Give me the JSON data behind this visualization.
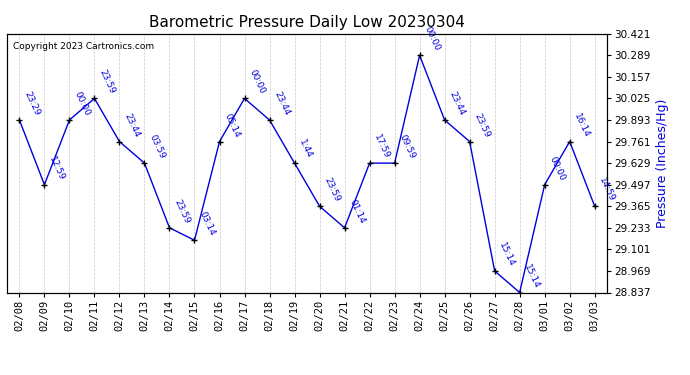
{
  "title": "Barometric Pressure Daily Low 20230304",
  "ylabel": "Pressure (Inches/Hg)",
  "copyright": "Copyright 2023 Cartronics.com",
  "line_color": "#0000dd",
  "background_color": "#ffffff",
  "grid_color": "#c8c8c8",
  "ylim_min": 28.837,
  "ylim_max": 30.421,
  "yticks": [
    28.837,
    28.969,
    29.101,
    29.233,
    29.365,
    29.497,
    29.629,
    29.761,
    29.893,
    30.025,
    30.157,
    30.289,
    30.421
  ],
  "dates": [
    "02/08",
    "02/09",
    "02/10",
    "02/11",
    "02/12",
    "02/13",
    "02/14",
    "02/15",
    "02/16",
    "02/17",
    "02/18",
    "02/19",
    "02/20",
    "02/21",
    "02/22",
    "02/23",
    "02/24",
    "02/25",
    "02/26",
    "02/27",
    "02/28",
    "03/01",
    "03/02",
    "03/03"
  ],
  "values": [
    29.893,
    29.497,
    29.893,
    30.025,
    29.761,
    29.629,
    29.233,
    29.157,
    29.761,
    30.025,
    29.893,
    29.629,
    29.365,
    29.233,
    29.629,
    29.629,
    30.289,
    29.893,
    29.761,
    28.969,
    28.837,
    29.497,
    29.761,
    29.365
  ],
  "ann_labels": [
    "23:29",
    "12:59",
    "00:00",
    "23:59",
    "23:44",
    "03:59",
    "23:59",
    "03:14",
    "05:14",
    "00:00",
    "23:44",
    "1:44",
    "23:59",
    "01:14",
    "17:59",
    "09:59",
    "00:00",
    "23:44",
    "23:59",
    "15:14",
    "15:14",
    "00:00",
    "16:14",
    "14:59"
  ],
  "title_fontsize": 11,
  "tick_fontsize": 7.5,
  "ann_fontsize": 6.5
}
